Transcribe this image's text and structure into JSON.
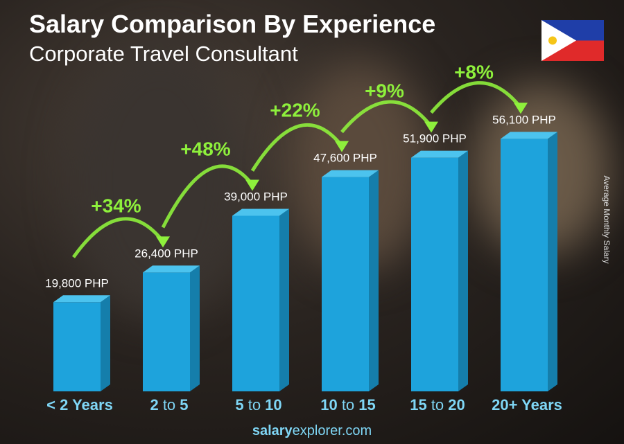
{
  "title": "Salary Comparison By Experience",
  "subtitle": "Corporate Travel Consultant",
  "y_axis_label": "Average Monthly Salary",
  "footer": {
    "bold": "salary",
    "regular": "explorer.com"
  },
  "country_flag": "philippines-flag",
  "colors": {
    "bar_front": "#1ea3dc",
    "bar_side": "#157eab",
    "bar_top": "#4cc3ee",
    "percent": "#8ef03c",
    "category": "#7fd6f5"
  },
  "chart_data": {
    "type": "bar",
    "categories": [
      {
        "a": "< 2 Years",
        "mid": "",
        "b": ""
      },
      {
        "a": "2",
        "mid": " to ",
        "b": "5"
      },
      {
        "a": "5",
        "mid": " to ",
        "b": "10"
      },
      {
        "a": "10",
        "mid": " to ",
        "b": "15"
      },
      {
        "a": "15",
        "mid": " to ",
        "b": "20"
      },
      {
        "a": "20+ Years",
        "mid": "",
        "b": ""
      }
    ],
    "values": [
      19800,
      26400,
      39000,
      47600,
      51900,
      56100
    ],
    "value_labels": [
      "19,800 PHP",
      "26,400 PHP",
      "39,000 PHP",
      "47,600 PHP",
      "51,900 PHP",
      "56,100 PHP"
    ],
    "percent_changes": [
      "+34%",
      "+48%",
      "+22%",
      "+9%",
      "+8%"
    ],
    "ylabel": "Average Monthly Salary"
  }
}
